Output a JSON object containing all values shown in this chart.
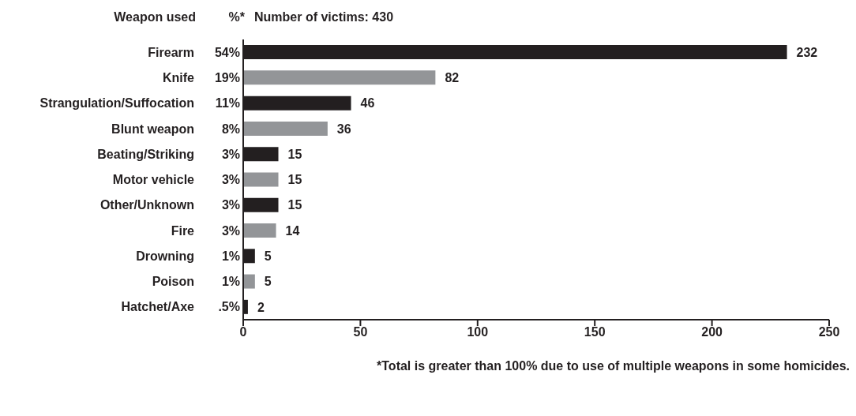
{
  "chart_data": {
    "type": "bar",
    "orientation": "horizontal",
    "title": "Number of victims: 430",
    "ylabel": "Weapon used",
    "categories": [
      "Firearm",
      "Knife",
      "Strangulation/Suffocation",
      "Blunt weapon",
      "Beating/Striking",
      "Motor vehicle",
      "Other/Unknown",
      "Fire",
      "Drowning",
      "Poison",
      "Hatchet/Axe"
    ],
    "values": [
      232,
      82,
      46,
      36,
      15,
      15,
      15,
      14,
      5,
      5,
      2
    ],
    "colors": [
      "#231f20",
      "#939598",
      "#231f20",
      "#939598",
      "#231f20",
      "#939598",
      "#231f20",
      "#939598",
      "#231f20",
      "#939598",
      "#231f20"
    ],
    "xlim": [
      0,
      250
    ],
    "xticks": [
      0,
      50,
      100,
      150,
      200,
      250
    ],
    "grid": false,
    "legend": false,
    "data_labels": true,
    "annotations": [
      "%*",
      "54%",
      "19%",
      "11%",
      "8%",
      "3%",
      "3%",
      "3%",
      "3%",
      "1%",
      "1%",
      ".5%",
      "*Total is greater than 100% due to use of multiple weapons in some homicides."
    ]
  }
}
